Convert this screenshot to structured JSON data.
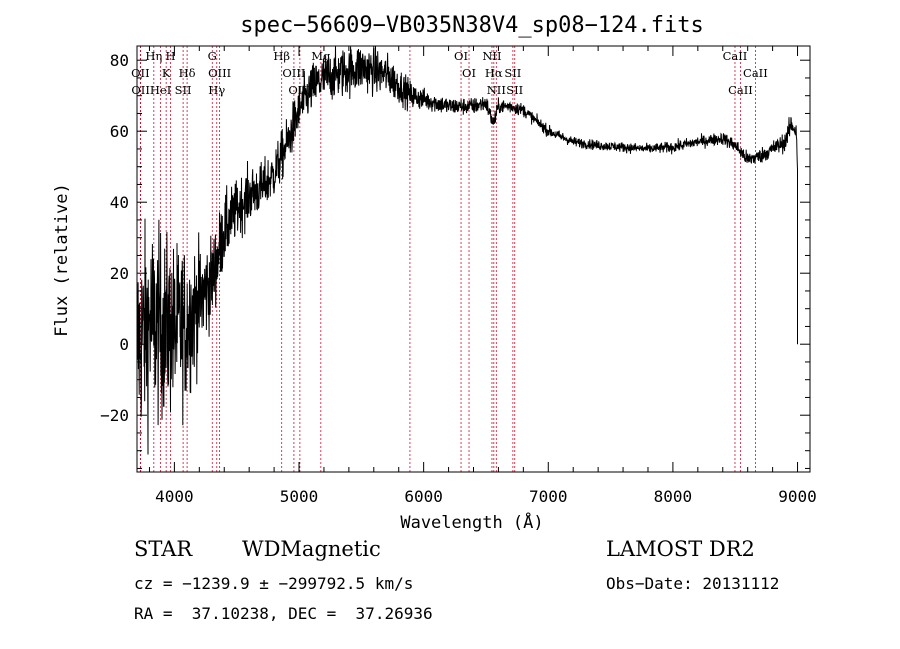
{
  "chart_data": {
    "type": "line",
    "title": "spec−56609−VB035N38V4_sp08−124.fits",
    "xlabel": "Wavelength (Å)",
    "ylabel": "Flux (relative)",
    "xlim": [
      3700,
      9100
    ],
    "ylim": [
      -36,
      84
    ],
    "x_ticks": [
      4000,
      5000,
      6000,
      7000,
      8000,
      9000
    ],
    "x_tick_labels": [
      "4000",
      "5000",
      "6000",
      "7000",
      "8000",
      "9000"
    ],
    "y_ticks": [
      -20,
      0,
      20,
      40,
      60,
      80
    ],
    "y_tick_labels": [
      "−20",
      "0",
      "20",
      "40",
      "60",
      "80"
    ],
    "x_minor_step": 200,
    "y_minor_step": 5,
    "grid": false,
    "line_color": "#000000",
    "marker_color": "#c8102e",
    "spectrum_anchors": [
      [
        3700,
        0,
        14
      ],
      [
        3800,
        6,
        14
      ],
      [
        3900,
        5,
        13
      ],
      [
        4000,
        4,
        12
      ],
      [
        4100,
        6,
        11
      ],
      [
        4200,
        12,
        8
      ],
      [
        4300,
        18,
        6
      ],
      [
        4400,
        32,
        5
      ],
      [
        4500,
        38,
        4
      ],
      [
        4600,
        42,
        4
      ],
      [
        4700,
        44,
        3.5
      ],
      [
        4800,
        48,
        3.5
      ],
      [
        4900,
        56,
        3.5
      ],
      [
        5000,
        66,
        3.5
      ],
      [
        5100,
        72,
        3.5
      ],
      [
        5200,
        75,
        3.5
      ],
      [
        5300,
        76,
        3.5
      ],
      [
        5400,
        77,
        3.5
      ],
      [
        5500,
        78,
        3.5
      ],
      [
        5600,
        77,
        3.2
      ],
      [
        5700,
        76,
        3
      ],
      [
        5800,
        73,
        2.5
      ],
      [
        5900,
        70,
        2
      ],
      [
        6000,
        69,
        1.5
      ],
      [
        6100,
        68,
        1.4
      ],
      [
        6200,
        67,
        1.3
      ],
      [
        6300,
        67,
        1.2
      ],
      [
        6400,
        67,
        1.2
      ],
      [
        6500,
        68,
        1.2
      ],
      [
        6560,
        62,
        1.2
      ],
      [
        6600,
        67,
        1
      ],
      [
        6700,
        67,
        1
      ],
      [
        6800,
        66,
        0.9
      ],
      [
        6900,
        63,
        0.8
      ],
      [
        7000,
        60,
        0.8
      ],
      [
        7200,
        57,
        0.7
      ],
      [
        7400,
        56,
        0.7
      ],
      [
        7600,
        55.5,
        0.7
      ],
      [
        7800,
        55,
        0.7
      ],
      [
        8000,
        55.5,
        0.8
      ],
      [
        8200,
        57,
        0.8
      ],
      [
        8400,
        58,
        0.9
      ],
      [
        8500,
        56,
        1
      ],
      [
        8600,
        52,
        1.1
      ],
      [
        8700,
        53,
        1.1
      ],
      [
        8800,
        55,
        1.2
      ],
      [
        8900,
        57,
        1.3
      ],
      [
        8950,
        62,
        1.5
      ],
      [
        8990,
        60,
        1.5
      ],
      [
        9000,
        50,
        1
      ]
    ],
    "spectral_lines": [
      {
        "label": "Hη",
        "wavelength": 3835,
        "row": 0
      },
      {
        "label": "OII",
        "wavelength": 3727,
        "row": 1
      },
      {
        "label": "OII",
        "wavelength": 3729,
        "row": 2
      },
      {
        "label": "K",
        "wavelength": 3934,
        "row": 1
      },
      {
        "label": "H",
        "wavelength": 3969,
        "row": 0
      },
      {
        "label": "HeI",
        "wavelength": 3889,
        "row": 2
      },
      {
        "label": "SII",
        "wavelength": 4070,
        "row": 2
      },
      {
        "label": "Hδ",
        "wavelength": 4102,
        "row": 1
      },
      {
        "label": "G",
        "wavelength": 4304,
        "row": 0
      },
      {
        "label": "OIII",
        "wavelength": 4363,
        "row": 1
      },
      {
        "label": "Hγ",
        "wavelength": 4340,
        "row": 2
      },
      {
        "label": "Hβ",
        "wavelength": 4861,
        "row": 0
      },
      {
        "label": "OIII",
        "wavelength": 4959,
        "row": 1
      },
      {
        "label": "OIII",
        "wavelength": 5007,
        "row": 2
      },
      {
        "label": "Mg",
        "wavelength": 5175,
        "row": 0
      },
      {
        "label": "OI",
        "wavelength": 6300,
        "row": 0
      },
      {
        "label": "OI",
        "wavelength": 6364,
        "row": 1
      },
      {
        "label": "NII",
        "wavelength": 6548,
        "row": 0
      },
      {
        "label": "Hα",
        "wavelength": 6563,
        "row": 1
      },
      {
        "label": "SII",
        "wavelength": 6716,
        "row": 1
      },
      {
        "label": "NII",
        "wavelength": 6583,
        "row": 2
      },
      {
        "label": "SII",
        "wavelength": 6731,
        "row": 2
      },
      {
        "label": "CaII",
        "wavelength": 8498,
        "row": 0
      },
      {
        "label": "CaII",
        "wavelength": 8662,
        "row": 1
      },
      {
        "label": "CaII",
        "wavelength": 8542,
        "row": 2
      },
      {
        "label": "",
        "wavelength": 5890,
        "row": 3
      }
    ]
  },
  "info": {
    "object_class": "STAR",
    "subclass": "WDMagnetic",
    "survey": "LAMOST DR2",
    "cz": "cz = −1239.9 ± −299792.5 km/s",
    "obs_date": "Obs−Date: 20131112",
    "coords": "RA =  37.10238, DEC =  37.26936"
  }
}
